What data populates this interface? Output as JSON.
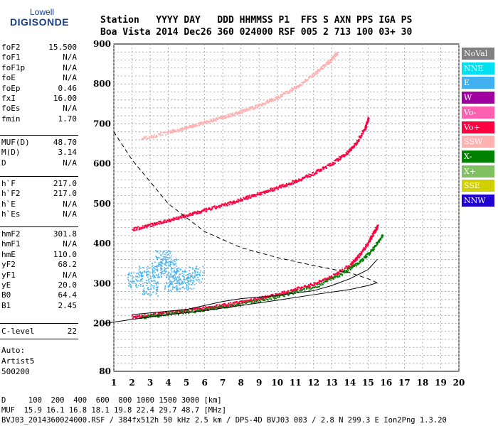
{
  "brand": {
    "top": "Lowell",
    "bottom": "DIGISONDE"
  },
  "header": {
    "row1": "Station   YYYY DAY   DDD HHMMSS P1  FFS S AXN PPS IGA PS",
    "row2": "Boa Vista 2014 Dec26 360 024000 RSF 005 2 713 100 03+ 30"
  },
  "params_group1": [
    {
      "name": "foF2",
      "value": "15.500"
    },
    {
      "name": "foF1",
      "value": "N/A"
    },
    {
      "name": "foF1p",
      "value": "N/A"
    },
    {
      "name": "foE",
      "value": "N/A"
    },
    {
      "name": "foEp",
      "value": "0.46"
    },
    {
      "name": "fxI",
      "value": "16.00"
    },
    {
      "name": "foEs",
      "value": "N/A"
    },
    {
      "name": "fmin",
      "value": "1.70"
    }
  ],
  "params_group2": [
    {
      "name": "MUF(D)",
      "value": "48.70"
    },
    {
      "name": "M(D)",
      "value": "3.14"
    },
    {
      "name": "D",
      "value": "N/A"
    }
  ],
  "params_group3": [
    {
      "name": "h`F",
      "value": "217.0"
    },
    {
      "name": "h`F2",
      "value": "217.0"
    },
    {
      "name": "h`E",
      "value": "N/A"
    },
    {
      "name": "h`Es",
      "value": "N/A"
    }
  ],
  "params_group4": [
    {
      "name": "hmF2",
      "value": "301.8"
    },
    {
      "name": "hmF1",
      "value": "N/A"
    },
    {
      "name": "hmE",
      "value": "110.0"
    },
    {
      "name": "yF2",
      "value": "68.2"
    },
    {
      "name": "yF1",
      "value": "N/A"
    },
    {
      "name": "yE",
      "value": "20.0"
    },
    {
      "name": "B0",
      "value": "64.4"
    },
    {
      "name": "B1",
      "value": "2.45"
    }
  ],
  "params_group5": [
    {
      "name": "C-level",
      "value": "22"
    }
  ],
  "auto": {
    "line1": "Auto:",
    "line2": "Artist5",
    "line3": "500200"
  },
  "footer": {
    "line1": "D     100  200  400  600  800 1000 1500 3000 [km]",
    "line2": "MUF  15.9 16.1 16.8 18.1 19.8 22.4 29.7 48.7 [MHz]",
    "line3": "BVJ03_2014360024000.RSF / 384fx512h 50 kHz 2.5 km / DPS-4D BVJ03 003 / 2.8 N 299.3 E Ion2Png 1.3.20"
  },
  "legend": [
    {
      "label": "NoVal",
      "color": "#808080"
    },
    {
      "label": "NNE",
      "color": "#00e0f0"
    },
    {
      "label": "E",
      "color": "#40b0f0"
    },
    {
      "label": "W",
      "color": "#a000a0"
    },
    {
      "label": "Vo-",
      "color": "#ff60b0"
    },
    {
      "label": "Vo+",
      "color": "#ff0040"
    },
    {
      "label": "SSW",
      "color": "#ffb0b0"
    },
    {
      "label": "X-",
      "color": "#008000"
    },
    {
      "label": "X+",
      "color": "#80c060"
    },
    {
      "label": "SSE",
      "color": "#d0d000"
    },
    {
      "label": "NNW",
      "color": "#2000d0"
    }
  ],
  "chart_data": {
    "type": "scatter",
    "xlim": [
      1,
      20
    ],
    "ylim": [
      80,
      900
    ],
    "x_ticks": [
      1,
      2,
      3,
      4,
      5,
      6,
      7,
      8,
      9,
      10,
      11,
      12,
      13,
      14,
      15,
      16,
      17,
      18,
      19,
      20
    ],
    "y_ticks": [
      80,
      200,
      300,
      400,
      500,
      600,
      700,
      800,
      900
    ],
    "grid": true,
    "series": [
      {
        "name": "Vo+",
        "color": "#ff0040",
        "points": [
          [
            2,
            217
          ],
          [
            3,
            222
          ],
          [
            4,
            228
          ],
          [
            5,
            234
          ],
          [
            6,
            240
          ],
          [
            7,
            247
          ],
          [
            8,
            255
          ],
          [
            9,
            264
          ],
          [
            10,
            274
          ],
          [
            11,
            287
          ],
          [
            12,
            300
          ],
          [
            13,
            320
          ],
          [
            14,
            348
          ],
          [
            14.5,
            372
          ],
          [
            15,
            405
          ],
          [
            15.3,
            430
          ],
          [
            15.5,
            445
          ]
        ]
      },
      {
        "name": "X-",
        "color": "#008000",
        "points": [
          [
            2.5,
            217
          ],
          [
            4,
            225
          ],
          [
            6,
            236
          ],
          [
            8,
            250
          ],
          [
            10,
            268
          ],
          [
            12,
            292
          ],
          [
            13.5,
            325
          ],
          [
            14.5,
            355
          ],
          [
            15.2,
            385
          ],
          [
            15.8,
            425
          ]
        ]
      },
      {
        "name": "Vo+",
        "color": "#ff0040",
        "points": [
          [
            2,
            437
          ],
          [
            3,
            448
          ],
          [
            4,
            460
          ],
          [
            5,
            472
          ],
          [
            6,
            485
          ],
          [
            7,
            498
          ],
          [
            8,
            512
          ],
          [
            9,
            527
          ],
          [
            10,
            542
          ],
          [
            11,
            558
          ],
          [
            12,
            578
          ],
          [
            13,
            602
          ],
          [
            13.8,
            628
          ],
          [
            14.3,
            652
          ],
          [
            14.8,
            690
          ],
          [
            15,
            715
          ]
        ]
      },
      {
        "name": "SSW",
        "color": "#ffb0b0",
        "points": [
          [
            2.5,
            665
          ],
          [
            4,
            680
          ],
          [
            5,
            692
          ],
          [
            6,
            705
          ],
          [
            7,
            718
          ],
          [
            8,
            732
          ],
          [
            9,
            748
          ],
          [
            10,
            768
          ],
          [
            11,
            793
          ],
          [
            12,
            825
          ],
          [
            12.8,
            856
          ],
          [
            13.3,
            880
          ]
        ]
      },
      {
        "name": "E",
        "color": "#40b0f0",
        "points": [
          [
            2.2,
            310
          ],
          [
            2.8,
            325
          ],
          [
            3.5,
            335
          ],
          [
            4,
            345
          ],
          [
            4.5,
            320
          ],
          [
            5,
            305
          ],
          [
            5.5,
            325
          ],
          [
            3,
            290
          ],
          [
            4.2,
            300
          ],
          [
            3.7,
            365
          ]
        ]
      }
    ],
    "profile": {
      "name": "hmF2 profile",
      "points": [
        [
          0.5,
          200
        ],
        [
          2,
          210
        ],
        [
          4,
          222
        ],
        [
          6,
          232
        ],
        [
          8,
          245
        ],
        [
          10,
          258
        ],
        [
          12,
          272
        ],
        [
          14,
          285
        ],
        [
          15,
          295
        ],
        [
          15.5,
          301.8
        ],
        [
          15,
          312
        ],
        [
          14,
          327
        ],
        [
          12,
          345
        ],
        [
          10,
          365
        ],
        [
          8,
          390
        ],
        [
          6,
          430
        ],
        [
          4,
          500
        ],
        [
          2,
          610
        ],
        [
          1,
          680
        ]
      ]
    },
    "virtual_trace": {
      "name": "virtual height",
      "points": [
        [
          2,
          222
        ],
        [
          5,
          235
        ],
        [
          7,
          255
        ],
        [
          8,
          262
        ],
        [
          10,
          270
        ],
        [
          12,
          282
        ],
        [
          13,
          295
        ],
        [
          14,
          312
        ],
        [
          15,
          335
        ],
        [
          15.5,
          360
        ]
      ]
    }
  }
}
